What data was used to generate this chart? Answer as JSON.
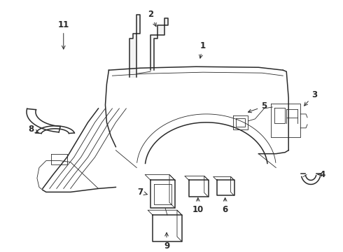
{
  "bg_color": "#ffffff",
  "line_color": "#2a2a2a",
  "lw_main": 1.1,
  "lw_thin": 0.6,
  "label_fontsize": 8.5,
  "figsize": [
    4.9,
    3.6
  ],
  "dpi": 100,
  "xlim": [
    0,
    490
  ],
  "ylim": [
    0,
    360
  ]
}
